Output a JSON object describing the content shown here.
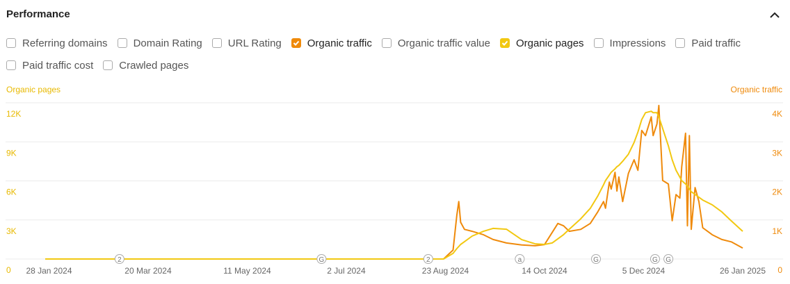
{
  "header": {
    "title": "Performance"
  },
  "checkboxes": [
    {
      "label": "Referring domains",
      "checked": false
    },
    {
      "label": "Domain Rating",
      "checked": false
    },
    {
      "label": "URL Rating",
      "checked": false
    },
    {
      "label": "Organic traffic",
      "checked": true,
      "color": "#ef8a0b"
    },
    {
      "label": "Organic traffic value",
      "checked": false
    },
    {
      "label": "Organic pages",
      "checked": true,
      "color": "#f2c811"
    },
    {
      "label": "Impressions",
      "checked": false
    },
    {
      "label": "Paid traffic",
      "checked": false
    },
    {
      "label": "Paid traffic cost",
      "checked": false
    },
    {
      "label": "Crawled pages",
      "checked": false
    }
  ],
  "chart_data": {
    "type": "line",
    "y_label": "Organic pages",
    "y2_label": "Organic traffic",
    "xlim": [
      "2024-01-26",
      "2025-01-26"
    ],
    "xticks": [
      {
        "value": "2024-01-28",
        "label": "28 Jan 2024"
      },
      {
        "value": "2024-03-20",
        "label": "20 Mar 2024"
      },
      {
        "value": "2024-05-11",
        "label": "11 May 2024"
      },
      {
        "value": "2024-07-02",
        "label": "2 Jul 2024"
      },
      {
        "value": "2024-08-23",
        "label": "23 Aug 2024"
      },
      {
        "value": "2024-10-14",
        "label": "14 Oct 2024"
      },
      {
        "value": "2024-12-05",
        "label": "5 Dec 2024"
      },
      {
        "value": "2025-01-26",
        "label": "26 Jan 2025"
      }
    ],
    "ylim": [
      0,
      12000
    ],
    "yticks": [
      0,
      {
        "value": 3000,
        "label": "3K"
      },
      {
        "value": 6000,
        "label": "6K"
      },
      {
        "value": 9000,
        "label": "9K"
      },
      {
        "value": 12000,
        "label": "12K"
      }
    ],
    "y2lim": [
      0,
      4000
    ],
    "y2ticks": [
      0,
      {
        "value": 1000,
        "label": "1K"
      },
      {
        "value": 2000,
        "label": "2K"
      },
      {
        "value": 3000,
        "label": "3K"
      },
      {
        "value": 4000,
        "label": "4K"
      }
    ],
    "grid": true,
    "x": [
      "2024-01-26",
      "2024-08-22",
      "2024-08-27",
      "2024-08-29",
      "2024-08-30",
      "2024-08-31",
      "2024-09-02",
      "2024-09-06",
      "2024-09-12",
      "2024-09-17",
      "2024-09-24",
      "2024-10-02",
      "2024-10-09",
      "2024-10-14",
      "2024-10-18",
      "2024-10-21",
      "2024-10-24",
      "2024-10-27",
      "2024-11-02",
      "2024-11-07",
      "2024-11-11",
      "2024-11-14",
      "2024-11-15",
      "2024-11-17",
      "2024-11-18",
      "2024-11-20",
      "2024-11-21",
      "2024-11-22",
      "2024-11-24",
      "2024-11-27",
      "2024-11-30",
      "2024-12-02",
      "2024-12-04",
      "2024-12-06",
      "2024-12-09",
      "2024-12-10",
      "2024-12-12",
      "2024-12-13",
      "2024-12-15",
      "2024-12-18",
      "2024-12-20",
      "2024-12-22",
      "2024-12-24",
      "2024-12-25",
      "2024-12-27",
      "2024-12-28",
      "2024-12-29",
      "2024-12-30",
      "2025-01-01",
      "2025-01-03",
      "2025-01-05",
      "2025-01-10",
      "2025-01-15",
      "2025-01-20",
      "2025-01-26"
    ],
    "series": [
      {
        "name": "Organic traffic",
        "color": "#ef8a0b",
        "axis": "y2",
        "values": [
          0,
          0,
          230,
          1120,
          1470,
          940,
          760,
          710,
          620,
          500,
          410,
          360,
          340,
          370,
          680,
          910,
          850,
          710,
          760,
          910,
          1210,
          1470,
          1300,
          1970,
          1790,
          2220,
          1740,
          2100,
          1470,
          2190,
          2540,
          2270,
          3290,
          3160,
          3640,
          3160,
          3460,
          3930,
          2010,
          1920,
          980,
          1650,
          1560,
          2360,
          3220,
          850,
          3160,
          760,
          1830,
          1470,
          800,
          620,
          500,
          440,
          280
        ]
      },
      {
        "name": "Organic pages",
        "color": "#f2c811",
        "values": [
          0,
          0,
          430,
          800,
          960,
          1120,
          1330,
          1760,
          2130,
          2350,
          2290,
          1490,
          1170,
          1120,
          1230,
          1550,
          1870,
          2290,
          3090,
          3890,
          4850,
          5700,
          6020,
          6450,
          6660,
          6930,
          7090,
          7190,
          7510,
          8050,
          8950,
          9750,
          10710,
          11240,
          11350,
          11240,
          11240,
          10920,
          10020,
          8690,
          7620,
          6820,
          6290,
          6020,
          5760,
          5600,
          5380,
          5170,
          4960,
          4740,
          4530,
          4160,
          3620,
          2930,
          2130
        ]
      }
    ],
    "annotations": [
      {
        "x": "2024-03-05",
        "label": "2"
      },
      {
        "x": "2024-06-19",
        "label": "G"
      },
      {
        "x": "2024-08-14",
        "label": "2"
      },
      {
        "x": "2024-10-01",
        "label": "a"
      },
      {
        "x": "2024-11-10",
        "label": "G"
      },
      {
        "x": "2024-12-11",
        "label": "G"
      },
      {
        "x": "2024-12-18",
        "label": "G"
      }
    ]
  }
}
